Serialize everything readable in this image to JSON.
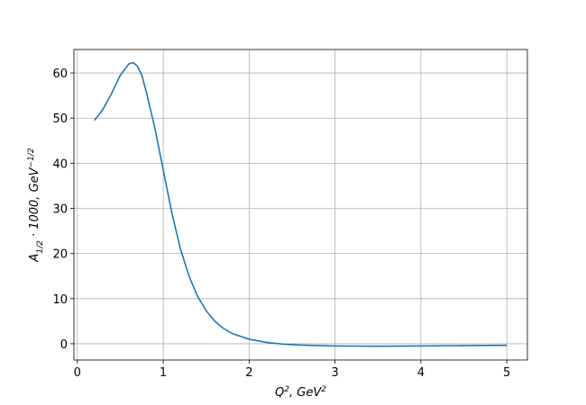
{
  "chart_data": {
    "type": "line",
    "xlabel": [
      {
        "text": "Q"
      },
      {
        "text": "2",
        "sup": true
      },
      {
        "text": ", GeV"
      },
      {
        "text": "2",
        "sup": true
      }
    ],
    "ylabel": [
      {
        "text": "A"
      },
      {
        "text": "1/2",
        "sub": true
      },
      {
        "text": " · 1000, GeV"
      },
      {
        "text": "−1/2",
        "sup": true
      }
    ],
    "x": [
      0.2,
      0.3,
      0.4,
      0.5,
      0.6,
      0.65,
      0.7,
      0.75,
      0.8,
      0.9,
      1.0,
      1.1,
      1.2,
      1.3,
      1.4,
      1.5,
      1.6,
      1.7,
      1.8,
      2.0,
      2.2,
      2.4,
      2.6,
      3.0,
      3.5,
      4.0,
      4.5,
      5.0
    ],
    "series": [
      {
        "color": "#1f77b4",
        "values": [
          49.5,
          52,
          55.5,
          59.5,
          62,
          62.3,
          61.5,
          59.5,
          56,
          48,
          38.5,
          29,
          21,
          15,
          10.5,
          7.3,
          5,
          3.4,
          2.3,
          1.0,
          0.3,
          -0.1,
          -0.3,
          -0.5,
          -0.55,
          -0.5,
          -0.4,
          -0.35
        ]
      }
    ],
    "xlim": [
      -0.04,
      5.24
    ],
    "xticks": [
      0,
      1,
      2,
      3,
      4,
      5
    ],
    "ylim": [
      -3.6,
      65.2
    ],
    "yticks": [
      0,
      10,
      20,
      30,
      40,
      50,
      60
    ],
    "grid": true
  }
}
